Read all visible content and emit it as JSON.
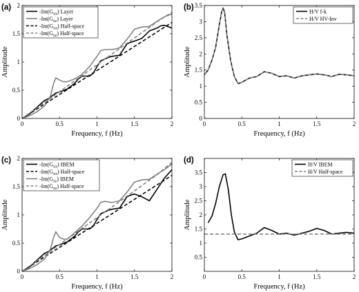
{
  "chart_data": [
    {
      "type": "line",
      "panel_label": "(a)",
      "xlabel": "Frequency, f (Hz)",
      "ylabel": "Amplitude",
      "xlim": [
        0,
        2
      ],
      "ylim": [
        0,
        2
      ],
      "xticks": [
        0,
        0.5,
        1,
        1.5,
        2
      ],
      "yticks": [
        0,
        0.5,
        1,
        1.5,
        2
      ],
      "xtick_labels": [
        "0",
        "0.5",
        "1",
        "1.5",
        "2"
      ],
      "ytick_labels": [
        "0",
        "0.5",
        "1",
        "1.5",
        "2"
      ],
      "legend_position": "top-left",
      "series": [
        {
          "name": "-Im(G_xx) Layer",
          "color": "#000000",
          "dash": "solid",
          "x": [
            0,
            0.1,
            0.2,
            0.3,
            0.35,
            0.4,
            0.45,
            0.5,
            0.6,
            0.7,
            0.75,
            0.8,
            0.9,
            0.95,
            1.0,
            1.05,
            1.1,
            1.15,
            1.2,
            1.3,
            1.35,
            1.4,
            1.45,
            1.5,
            1.6,
            1.7,
            1.8,
            1.85,
            1.9,
            2.0
          ],
          "y": [
            0,
            0.08,
            0.2,
            0.32,
            0.35,
            0.4,
            0.45,
            0.47,
            0.52,
            0.62,
            0.7,
            0.75,
            0.75,
            0.8,
            0.92,
            1.02,
            1.05,
            1.08,
            1.1,
            1.12,
            1.22,
            1.32,
            1.35,
            1.37,
            1.42,
            1.55,
            1.6,
            1.64,
            1.65,
            1.6
          ]
        },
        {
          "name": "-Im(G_zz) Layer",
          "color": "#808080",
          "dash": "solid",
          "x": [
            0,
            0.1,
            0.2,
            0.3,
            0.38,
            0.42,
            0.45,
            0.5,
            0.55,
            0.6,
            0.7,
            0.8,
            0.9,
            1.0,
            1.05,
            1.1,
            1.2,
            1.3,
            1.4,
            1.5,
            1.6,
            1.7,
            1.8,
            1.9,
            2.0
          ],
          "y": [
            0,
            0.05,
            0.12,
            0.22,
            0.4,
            0.62,
            0.72,
            0.68,
            0.65,
            0.65,
            0.7,
            0.78,
            0.92,
            1.1,
            1.2,
            1.22,
            1.22,
            1.25,
            1.4,
            1.58,
            1.62,
            1.63,
            1.72,
            1.8,
            1.85
          ]
        },
        {
          "name": "-Im(G_xx) Half-space",
          "color": "#000000",
          "dash": "dashed",
          "x": [
            0,
            0.2,
            0.4,
            0.6,
            0.8,
            1.0,
            1.2,
            1.4,
            1.6,
            1.8,
            2.0
          ],
          "y": [
            0,
            0.17,
            0.34,
            0.51,
            0.68,
            0.85,
            1.02,
            1.19,
            1.36,
            1.53,
            1.7
          ]
        },
        {
          "name": "-Im(G_zz) Half-space",
          "color": "#808080",
          "dash": "dashed",
          "x": [
            0,
            0.2,
            0.4,
            0.6,
            0.8,
            1.0,
            1.2,
            1.4,
            1.6,
            1.8,
            2.0
          ],
          "y": [
            0,
            0.19,
            0.38,
            0.57,
            0.76,
            0.95,
            1.14,
            1.33,
            1.52,
            1.71,
            1.88
          ]
        }
      ]
    },
    {
      "type": "line",
      "panel_label": "(b)",
      "xlabel": "Frequency, f (Hz)",
      "ylabel": "Amplitude",
      "xlim": [
        0,
        2
      ],
      "ylim": [
        0,
        3.5
      ],
      "xticks": [
        0,
        0.5,
        1,
        1.5,
        2
      ],
      "yticks": [
        0,
        0.5,
        1,
        1.5,
        2,
        2.5,
        3,
        3.5
      ],
      "xtick_labels": [
        "0",
        "0.5",
        "1",
        "1.5",
        "2"
      ],
      "ytick_labels": [
        "0",
        "0.5",
        "1",
        "1.5",
        "2",
        "2.5",
        "3",
        "3.5"
      ],
      "legend_position": "top-right",
      "series": [
        {
          "name": "H/V f-k",
          "color": "#000000",
          "dash": "solid",
          "x": [
            0,
            0.05,
            0.1,
            0.15,
            0.2,
            0.23,
            0.25,
            0.27,
            0.3,
            0.35,
            0.4,
            0.45,
            0.5,
            0.6,
            0.7,
            0.8,
            0.9,
            1.0,
            1.1,
            1.2,
            1.3,
            1.4,
            1.5,
            1.6,
            1.7,
            1.8,
            1.9,
            2.0
          ],
          "y": [
            1.35,
            1.5,
            1.8,
            2.2,
            2.9,
            3.3,
            3.42,
            3.3,
            2.6,
            1.8,
            1.3,
            1.08,
            1.12,
            1.25,
            1.3,
            1.45,
            1.4,
            1.3,
            1.32,
            1.25,
            1.32,
            1.35,
            1.38,
            1.35,
            1.3,
            1.37,
            1.35,
            1.32
          ]
        },
        {
          "name": "H/V HV-Inv",
          "color": "#808080",
          "dash": "dashed",
          "x": [
            0,
            0.05,
            0.1,
            0.15,
            0.2,
            0.23,
            0.25,
            0.27,
            0.3,
            0.35,
            0.4,
            0.45,
            0.5,
            0.6,
            0.7,
            0.8,
            0.9,
            1.0,
            1.1,
            1.2,
            1.3,
            1.4,
            1.5,
            1.6,
            1.7,
            1.8,
            1.9,
            2.0
          ],
          "y": [
            1.35,
            1.5,
            1.8,
            2.2,
            2.9,
            3.3,
            3.4,
            3.28,
            2.6,
            1.8,
            1.3,
            1.08,
            1.12,
            1.25,
            1.3,
            1.45,
            1.4,
            1.3,
            1.32,
            1.25,
            1.32,
            1.35,
            1.38,
            1.35,
            1.3,
            1.37,
            1.35,
            1.32
          ]
        }
      ]
    },
    {
      "type": "line",
      "panel_label": "(c)",
      "xlabel": "Frequency, f (Hz)",
      "ylabel": "Amplitude",
      "xlim": [
        0,
        2
      ],
      "ylim": [
        0,
        2
      ],
      "xticks": [
        0,
        0.5,
        1,
        1.5,
        2
      ],
      "yticks": [
        0,
        0.5,
        1,
        1.5,
        2
      ],
      "xtick_labels": [
        "0",
        "0.5",
        "1",
        "1.5",
        "2"
      ],
      "ytick_labels": [
        "0",
        "0.5",
        "1",
        "1.5",
        "2"
      ],
      "legend_position": "top-left",
      "series": [
        {
          "name": "-Im(G_xx) IBEM",
          "color": "#000000",
          "dash": "solid",
          "x": [
            0,
            0.1,
            0.2,
            0.3,
            0.35,
            0.4,
            0.45,
            0.5,
            0.6,
            0.7,
            0.75,
            0.8,
            0.9,
            0.95,
            1.0,
            1.05,
            1.1,
            1.15,
            1.2,
            1.3,
            1.35,
            1.4,
            1.45,
            1.5,
            1.6,
            1.7,
            1.8,
            1.9,
            2.0
          ],
          "y": [
            0,
            0.08,
            0.2,
            0.32,
            0.35,
            0.4,
            0.45,
            0.47,
            0.52,
            0.62,
            0.7,
            0.75,
            0.75,
            0.8,
            0.92,
            1.02,
            1.05,
            1.08,
            1.1,
            1.12,
            1.22,
            1.32,
            1.35,
            1.37,
            1.32,
            1.25,
            1.45,
            1.65,
            1.8
          ]
        },
        {
          "name": "-Im(G_xx) Half-space",
          "color": "#000000",
          "dash": "dashed",
          "x": [
            0,
            0.2,
            0.4,
            0.6,
            0.8,
            1.0,
            1.2,
            1.4,
            1.6,
            1.8,
            2.0
          ],
          "y": [
            0,
            0.17,
            0.34,
            0.51,
            0.68,
            0.85,
            1.02,
            1.19,
            1.36,
            1.53,
            1.7
          ]
        },
        {
          "name": "-Im(G_zz) IBEM",
          "color": "#808080",
          "dash": "solid",
          "x": [
            0,
            0.1,
            0.2,
            0.3,
            0.38,
            0.42,
            0.45,
            0.5,
            0.55,
            0.6,
            0.7,
            0.8,
            0.9,
            1.0,
            1.05,
            1.1,
            1.2,
            1.3,
            1.4,
            1.5,
            1.6,
            1.7,
            1.8,
            1.9,
            2.0
          ],
          "y": [
            0,
            0.05,
            0.12,
            0.22,
            0.4,
            0.6,
            0.7,
            0.6,
            0.57,
            0.57,
            0.68,
            0.8,
            0.95,
            1.12,
            1.22,
            1.24,
            1.22,
            1.25,
            1.4,
            1.58,
            1.62,
            1.63,
            1.72,
            1.8,
            1.9
          ]
        },
        {
          "name": "-Im(G_zz) Half-space",
          "color": "#808080",
          "dash": "dashed",
          "x": [
            0,
            0.2,
            0.4,
            0.6,
            0.8,
            1.0,
            1.2,
            1.4,
            1.6,
            1.8,
            2.0
          ],
          "y": [
            0,
            0.19,
            0.38,
            0.57,
            0.76,
            0.95,
            1.14,
            1.33,
            1.52,
            1.71,
            1.93
          ]
        }
      ]
    },
    {
      "type": "line",
      "panel_label": "(d)",
      "xlabel": "Frequency, f (Hz)",
      "ylabel": "Amplitude",
      "xlim": [
        0,
        2
      ],
      "ylim": [
        0,
        4
      ],
      "xticks": [
        0,
        0.5,
        1,
        1.5,
        2
      ],
      "yticks": [
        0.5,
        1,
        1.5,
        2,
        2.5,
        3,
        3.5
      ],
      "xtick_labels": [
        "0",
        "0.5",
        "1",
        "1.5",
        "2"
      ],
      "ytick_labels": [
        "0.5",
        "1",
        "1.5",
        "2",
        "2.5",
        "3",
        "3.5"
      ],
      "legend_position": "top-right",
      "series": [
        {
          "name": "H/V IBEM",
          "color": "#000000",
          "dash": "solid",
          "x": [
            0.05,
            0.1,
            0.15,
            0.2,
            0.25,
            0.28,
            0.32,
            0.36,
            0.4,
            0.45,
            0.5,
            0.6,
            0.7,
            0.8,
            0.9,
            1.0,
            1.1,
            1.2,
            1.3,
            1.4,
            1.5,
            1.6,
            1.7,
            1.8,
            1.9,
            2.0
          ],
          "y": [
            1.72,
            1.95,
            2.4,
            3.0,
            3.42,
            3.45,
            2.9,
            2.0,
            1.4,
            1.12,
            1.15,
            1.25,
            1.35,
            1.55,
            1.45,
            1.32,
            1.35,
            1.28,
            1.35,
            1.42,
            1.52,
            1.45,
            1.32,
            1.35,
            1.38,
            1.35
          ]
        },
        {
          "name": "H/V Half-space",
          "color": "#808080",
          "dash": "dashed",
          "x": [
            0,
            2
          ],
          "y": [
            1.32,
            1.32
          ]
        }
      ]
    }
  ]
}
